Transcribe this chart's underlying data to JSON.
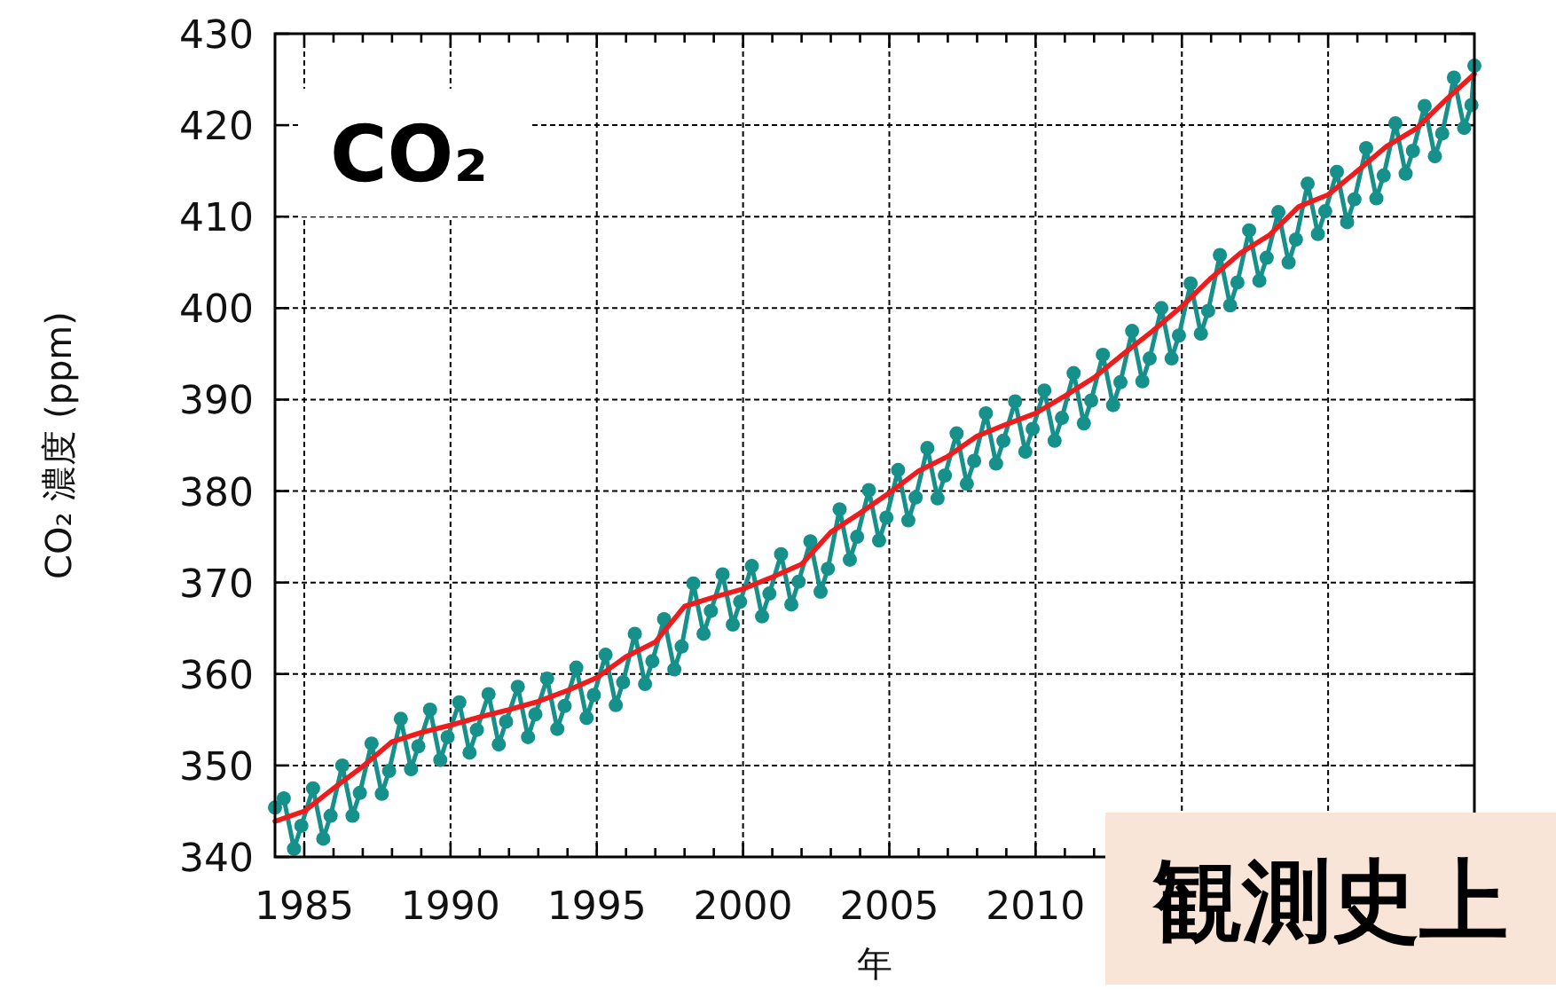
{
  "chart_data": {
    "type": "line",
    "xlabel": "年",
    "ylabel": "CO₂ 濃度 (ppm)",
    "annotations": [
      "CO₂",
      "観測史上"
    ],
    "xlim": [
      1984,
      2025
    ],
    "ylim": [
      340,
      430
    ],
    "xticks": [
      1985,
      {
        "value": 1986,
        "label": null
      },
      {
        "value": 1987,
        "label": null
      },
      {
        "value": 1988,
        "label": null
      },
      {
        "value": 1989,
        "label": null
      },
      1990,
      {
        "value": 1991,
        "label": null
      },
      {
        "value": 1992,
        "label": null
      },
      {
        "value": 1993,
        "label": null
      },
      {
        "value": 1994,
        "label": null
      },
      1995,
      {
        "value": 1996,
        "label": null
      },
      {
        "value": 1997,
        "label": null
      },
      {
        "value": 1998,
        "label": null
      },
      {
        "value": 1999,
        "label": null
      },
      2000,
      {
        "value": 2001,
        "label": null
      },
      {
        "value": 2002,
        "label": null
      },
      {
        "value": 2003,
        "label": null
      },
      {
        "value": 2004,
        "label": null
      },
      2005,
      {
        "value": 2006,
        "label": null
      },
      {
        "value": 2007,
        "label": null
      },
      {
        "value": 2008,
        "label": null
      },
      {
        "value": 2009,
        "label": null
      },
      2010,
      {
        "value": 2011,
        "label": null
      },
      {
        "value": 2012,
        "label": null
      },
      {
        "value": 2013,
        "label": null
      },
      {
        "value": 2014,
        "label": null
      },
      {
        "value": 2015,
        "label": null
      },
      {
        "value": 2016,
        "label": null
      },
      {
        "value": 2017,
        "label": null
      },
      {
        "value": 2018,
        "label": null
      },
      {
        "value": 2019,
        "label": null
      },
      {
        "value": 2020,
        "label": null
      },
      {
        "value": 2021,
        "label": null
      },
      {
        "value": 2022,
        "label": null
      },
      {
        "value": 2023,
        "label": null
      },
      {
        "value": 2024,
        "label": null
      }
    ],
    "yticks": [
      340,
      350,
      360,
      370,
      380,
      390,
      400,
      410,
      420,
      430
    ],
    "grid": true,
    "line_style": "solid",
    "series": [
      {
        "color": "#16908a",
        "marker": "circle",
        "x": [
          1984.0,
          1984.3,
          1984.65,
          1984.9,
          1985.3,
          1985.65,
          1985.9,
          1986.3,
          1986.65,
          1986.9,
          1987.3,
          1987.65,
          1987.9,
          1988.3,
          1988.65,
          1988.9,
          1989.3,
          1989.65,
          1989.9,
          1990.3,
          1990.65,
          1990.9,
          1991.3,
          1991.65,
          1991.9,
          1992.3,
          1992.65,
          1992.9,
          1993.3,
          1993.65,
          1993.9,
          1994.3,
          1994.65,
          1994.9,
          1995.3,
          1995.65,
          1995.9,
          1996.3,
          1996.65,
          1996.9,
          1997.3,
          1997.65,
          1997.9,
          1998.3,
          1998.65,
          1998.9,
          1999.3,
          1999.65,
          1999.9,
          2000.3,
          2000.65,
          2000.9,
          2001.3,
          2001.65,
          2001.9,
          2002.3,
          2002.65,
          2002.9,
          2003.3,
          2003.65,
          2003.9,
          2004.3,
          2004.65,
          2004.9,
          2005.3,
          2005.65,
          2005.9,
          2006.3,
          2006.65,
          2006.9,
          2007.3,
          2007.65,
          2007.9,
          2008.3,
          2008.65,
          2008.9,
          2009.3,
          2009.65,
          2009.9,
          2010.3,
          2010.65,
          2010.9,
          2011.3,
          2011.65,
          2011.9,
          2012.3,
          2012.65,
          2012.9,
          2013.3,
          2013.65,
          2013.9,
          2014.3,
          2014.65,
          2014.9,
          2015.3,
          2015.65,
          2015.9,
          2016.3,
          2016.65,
          2016.9,
          2017.3,
          2017.65,
          2017.9,
          2018.3,
          2018.65,
          2018.9,
          2019.3,
          2019.65,
          2019.9,
          2020.3,
          2020.65,
          2020.9,
          2021.3,
          2021.65,
          2021.9,
          2022.3,
          2022.65,
          2022.9,
          2023.3,
          2023.65,
          2023.9,
          2024.3,
          2024.65,
          2024.9,
          2025.0
        ],
        "values": [
          345.4,
          346.4,
          340.9,
          343.4,
          347.5,
          342.0,
          344.5,
          350.0,
          344.5,
          347.0,
          352.4,
          346.9,
          349.4,
          355.1,
          349.6,
          352.1,
          356.1,
          350.6,
          353.1,
          356.9,
          351.4,
          353.9,
          357.8,
          352.3,
          354.8,
          358.6,
          353.1,
          355.6,
          359.5,
          354.0,
          356.5,
          360.7,
          355.2,
          357.7,
          362.1,
          356.6,
          359.1,
          364.4,
          358.9,
          361.4,
          366.0,
          360.5,
          363.0,
          369.9,
          364.4,
          366.9,
          370.9,
          365.4,
          367.9,
          371.8,
          366.3,
          368.8,
          373.1,
          367.6,
          370.1,
          374.5,
          369.0,
          371.5,
          378.0,
          372.5,
          375.0,
          380.1,
          374.6,
          377.1,
          382.3,
          376.8,
          379.3,
          384.7,
          379.2,
          381.7,
          386.3,
          380.8,
          383.3,
          388.5,
          383.0,
          385.5,
          389.8,
          384.3,
          386.8,
          391.0,
          385.5,
          388.0,
          392.9,
          387.4,
          389.9,
          394.9,
          389.4,
          391.9,
          397.5,
          392.0,
          394.5,
          400.0,
          394.5,
          397.0,
          402.7,
          397.2,
          399.7,
          405.8,
          400.3,
          402.8,
          408.5,
          403.0,
          405.5,
          410.5,
          405.0,
          407.5,
          413.6,
          408.1,
          410.6,
          414.9,
          409.4,
          411.9,
          417.5,
          412.0,
          414.5,
          420.2,
          414.7,
          417.2,
          422.1,
          416.6,
          419.1,
          425.2,
          419.7,
          422.2,
          426.5
        ]
      },
      {
        "color": "#ee1c1c",
        "marker": "none",
        "x": [
          1984,
          1985,
          1986,
          1987,
          1988,
          1989,
          1990,
          1991,
          1992,
          1993,
          1994,
          1995,
          1996,
          1997,
          1998,
          1999,
          2000,
          2001,
          2002,
          2003,
          2004,
          2005,
          2006,
          2007,
          2008,
          2009,
          2010,
          2011,
          2012,
          2013,
          2014,
          2015,
          2016,
          2017,
          2018,
          2019,
          2020,
          2021,
          2022,
          2023,
          2024,
          2025
        ],
        "values": [
          343.9,
          345.0,
          347.5,
          349.9,
          352.6,
          353.6,
          354.4,
          355.3,
          356.1,
          357.0,
          358.2,
          359.6,
          361.9,
          363.5,
          367.4,
          368.4,
          369.3,
          370.6,
          372.0,
          375.5,
          377.6,
          379.8,
          382.2,
          383.8,
          386.0,
          387.3,
          388.5,
          390.4,
          392.4,
          395.0,
          397.5,
          400.2,
          403.3,
          406.0,
          408.0,
          411.1,
          412.4,
          415.0,
          417.7,
          419.6,
          422.7,
          425.6
        ]
      }
    ]
  }
}
